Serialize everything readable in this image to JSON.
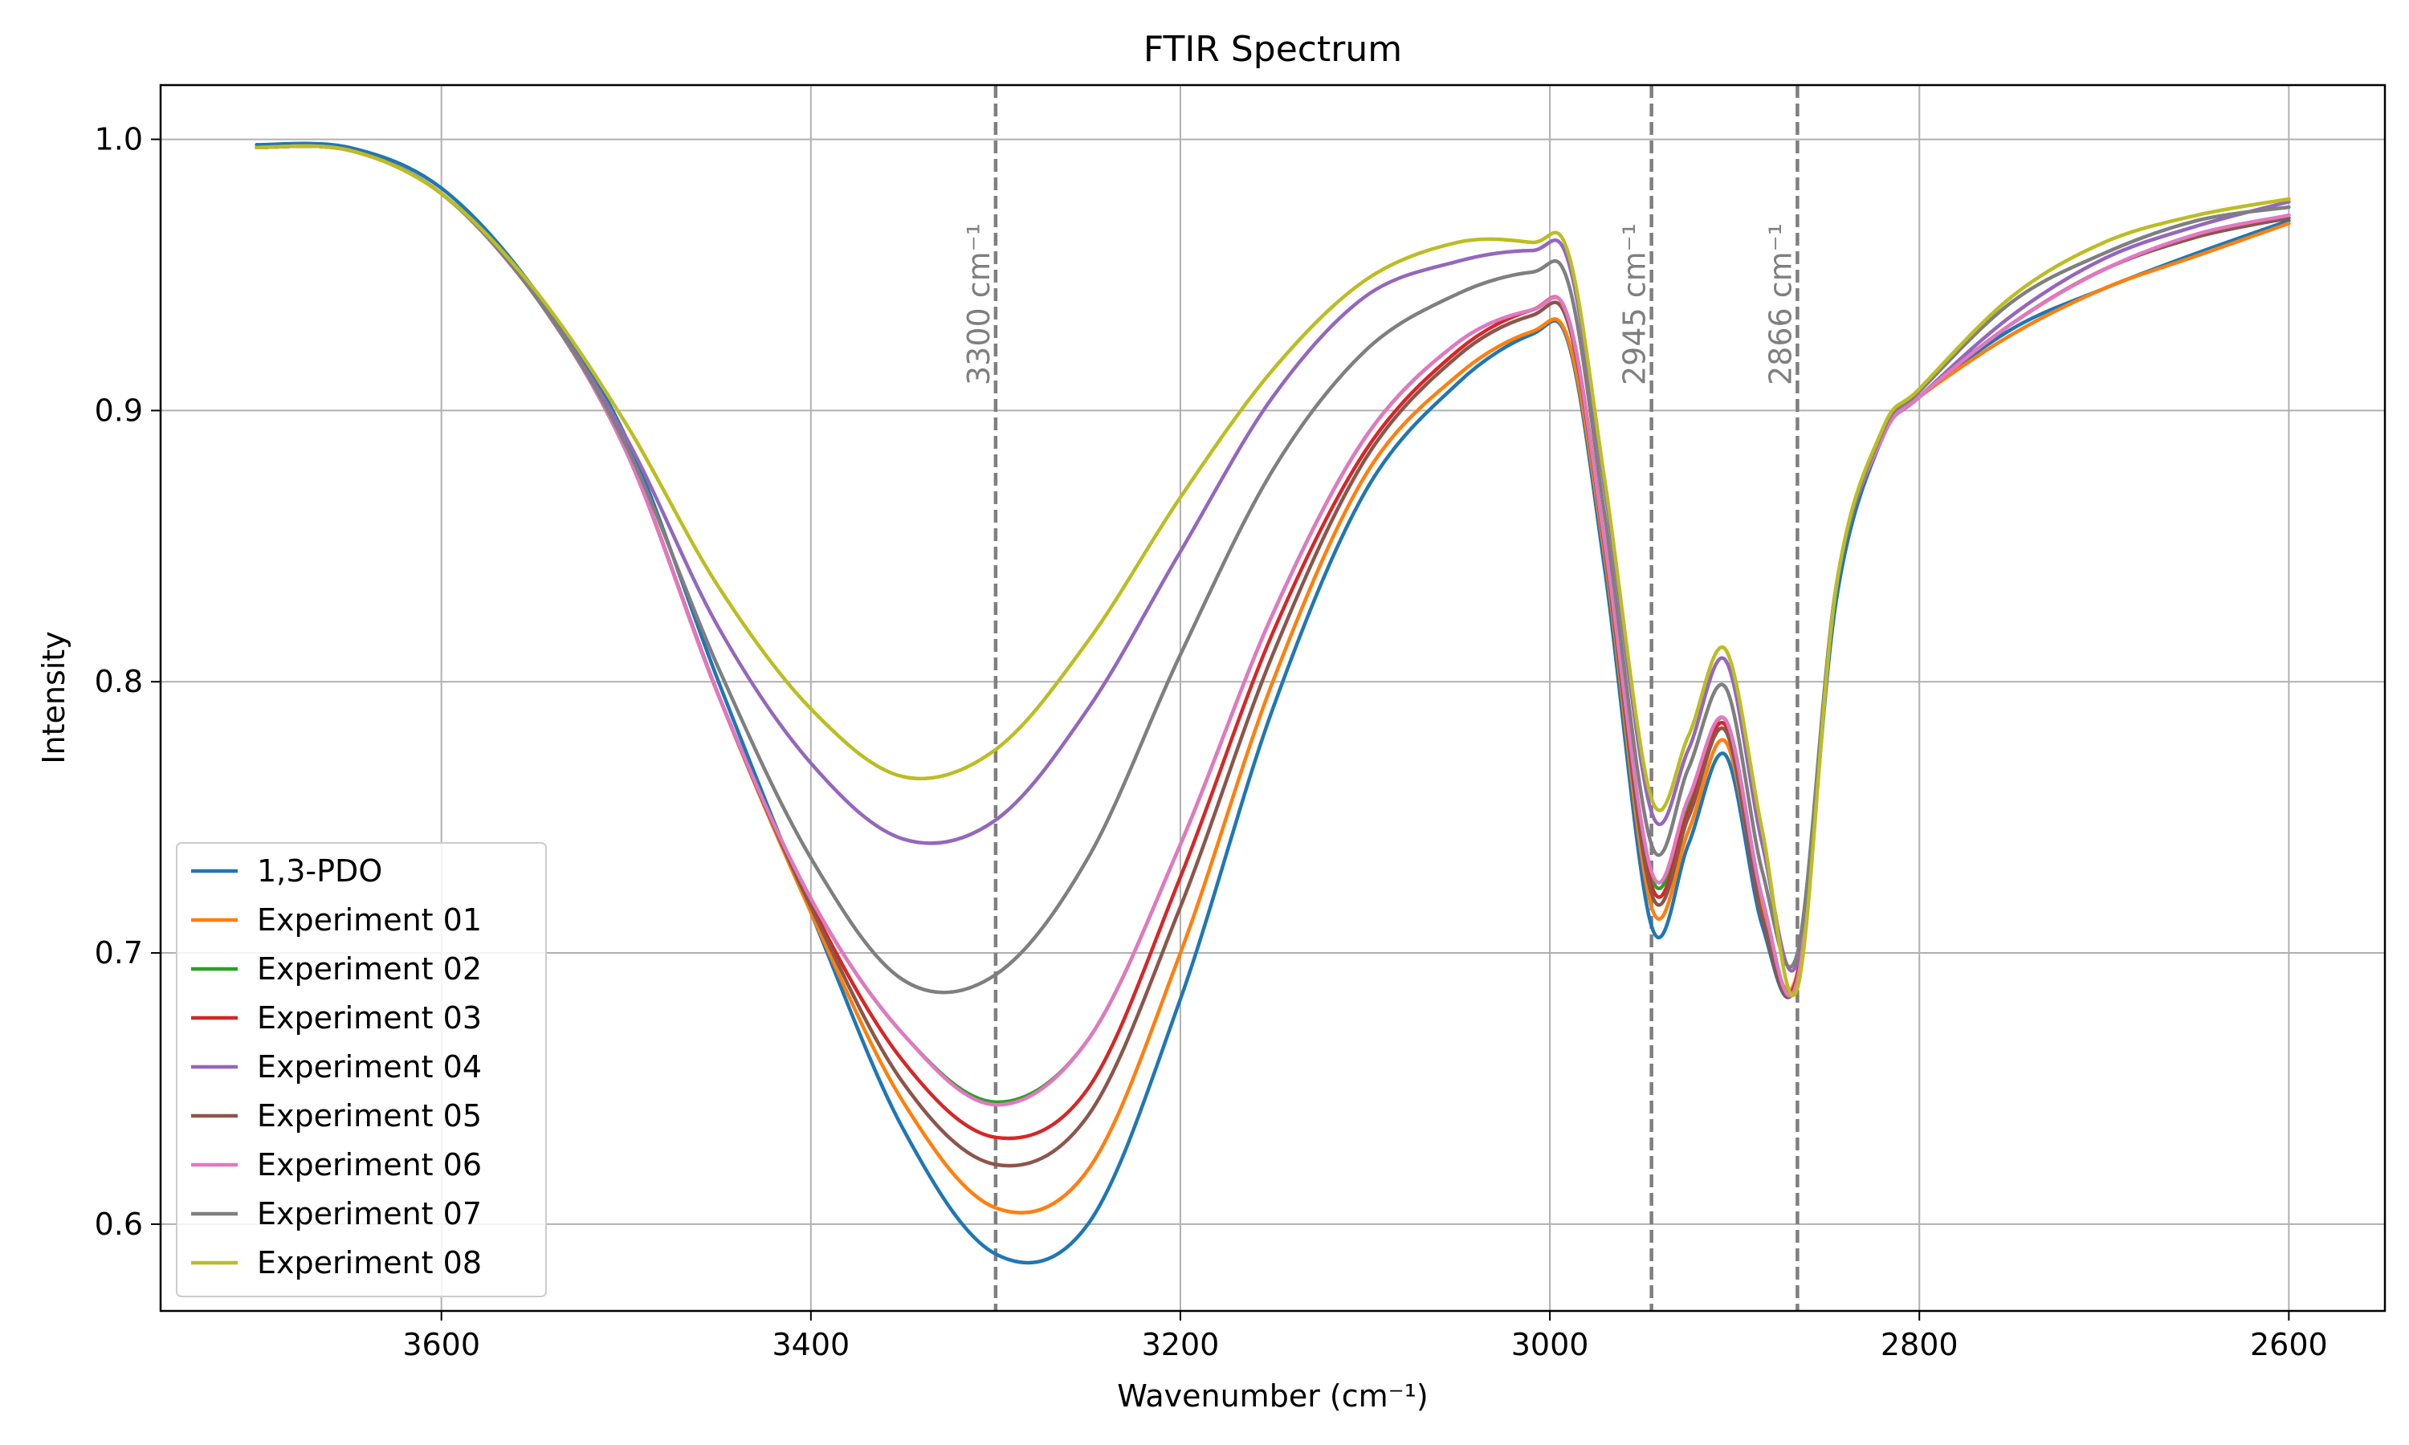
{
  "chart_data": {
    "type": "line",
    "title": "FTIR Spectrum",
    "xlabel": "Wavenumber (cm⁻¹)",
    "ylabel": "Intensity",
    "xlim": [
      3752,
      2548
    ],
    "ylim": [
      0.568,
      1.02
    ],
    "x_ticks": [
      3600,
      3400,
      3200,
      3000,
      2800,
      2600
    ],
    "y_ticks": [
      0.6,
      0.7,
      0.8,
      0.9,
      1.0
    ],
    "x_tick_labels": [
      "3600",
      "3400",
      "3200",
      "3000",
      "2800",
      "2600"
    ],
    "y_tick_labels": [
      "0.6",
      "0.7",
      "0.8",
      "0.9",
      "1.0"
    ],
    "grid": true,
    "legend_position": "lower-left",
    "x_inverted": true,
    "reference_lines": [
      {
        "x": 3300,
        "label": "3300 cm⁻¹"
      },
      {
        "x": 2945,
        "label": "2945 cm⁻¹"
      },
      {
        "x": 2866,
        "label": "2866 cm⁻¹"
      }
    ],
    "x": [
      3700,
      3650,
      3600,
      3550,
      3500,
      3450,
      3400,
      3350,
      3300,
      3250,
      3200,
      3150,
      3100,
      3050,
      3010,
      2990,
      2970,
      2945,
      2925,
      2905,
      2885,
      2866,
      2845,
      2820,
      2800,
      2750,
      2700,
      2650,
      2600
    ],
    "series": [
      {
        "name": "1,3-PDO",
        "color": "#1f77b4",
        "values": [
          0.998,
          0.997,
          0.982,
          0.945,
          0.89,
          0.8,
          0.715,
          0.635,
          0.589,
          0.6,
          0.683,
          0.79,
          0.87,
          0.91,
          0.928,
          0.925,
          0.84,
          0.71,
          0.74,
          0.773,
          0.71,
          0.691,
          0.83,
          0.89,
          0.905,
          0.93,
          0.945,
          0.958,
          0.97
        ]
      },
      {
        "name": "Experiment 01",
        "color": "#ff7f0e",
        "values": [
          0.997,
          0.996,
          0.98,
          0.943,
          0.885,
          0.795,
          0.715,
          0.645,
          0.606,
          0.62,
          0.7,
          0.8,
          0.876,
          0.913,
          0.929,
          0.926,
          0.845,
          0.717,
          0.745,
          0.778,
          0.715,
          0.693,
          0.835,
          0.892,
          0.905,
          0.928,
          0.945,
          0.957,
          0.969
        ]
      },
      {
        "name": "Experiment 02",
        "color": "#2ca02c",
        "values": [
          0.997,
          0.996,
          0.98,
          0.943,
          0.885,
          0.795,
          0.72,
          0.67,
          0.645,
          0.668,
          0.74,
          0.825,
          0.89,
          0.925,
          0.937,
          0.934,
          0.85,
          0.728,
          0.755,
          0.786,
          0.72,
          0.69,
          0.835,
          0.89,
          0.905,
          0.932,
          0.952,
          0.964,
          0.972
        ]
      },
      {
        "name": "Experiment 03",
        "color": "#d62728",
        "values": [
          0.997,
          0.996,
          0.98,
          0.943,
          0.885,
          0.795,
          0.718,
          0.66,
          0.632,
          0.65,
          0.728,
          0.818,
          0.885,
          0.922,
          0.937,
          0.934,
          0.85,
          0.725,
          0.752,
          0.784,
          0.713,
          0.692,
          0.835,
          0.89,
          0.905,
          0.932,
          0.952,
          0.964,
          0.971
        ]
      },
      {
        "name": "Experiment 04",
        "color": "#9467bd",
        "values": [
          0.997,
          0.996,
          0.98,
          0.943,
          0.89,
          0.82,
          0.77,
          0.742,
          0.749,
          0.79,
          0.848,
          0.905,
          0.942,
          0.955,
          0.959,
          0.955,
          0.87,
          0.752,
          0.775,
          0.808,
          0.74,
          0.697,
          0.835,
          0.89,
          0.905,
          0.935,
          0.956,
          0.968,
          0.977
        ]
      },
      {
        "name": "Experiment 05",
        "color": "#8c564b",
        "values": [
          0.997,
          0.996,
          0.98,
          0.943,
          0.885,
          0.795,
          0.717,
          0.652,
          0.622,
          0.64,
          0.717,
          0.81,
          0.882,
          0.92,
          0.935,
          0.932,
          0.848,
          0.722,
          0.75,
          0.782,
          0.713,
          0.691,
          0.835,
          0.89,
          0.905,
          0.932,
          0.952,
          0.964,
          0.971
        ]
      },
      {
        "name": "Experiment 06",
        "color": "#e377c2",
        "values": [
          0.997,
          0.996,
          0.98,
          0.943,
          0.885,
          0.795,
          0.72,
          0.67,
          0.644,
          0.668,
          0.74,
          0.825,
          0.89,
          0.925,
          0.937,
          0.934,
          0.85,
          0.73,
          0.757,
          0.786,
          0.72,
          0.69,
          0.835,
          0.89,
          0.905,
          0.932,
          0.952,
          0.965,
          0.972
        ]
      },
      {
        "name": "Experiment 07",
        "color": "#7f7f7f",
        "values": [
          0.997,
          0.996,
          0.98,
          0.943,
          0.887,
          0.805,
          0.735,
          0.69,
          0.692,
          0.735,
          0.81,
          0.878,
          0.922,
          0.943,
          0.951,
          0.947,
          0.86,
          0.74,
          0.768,
          0.798,
          0.73,
          0.7,
          0.835,
          0.892,
          0.907,
          0.94,
          0.958,
          0.97,
          0.975
        ]
      },
      {
        "name": "Experiment 08",
        "color": "#bcbd22",
        "values": [
          0.997,
          0.996,
          0.98,
          0.945,
          0.895,
          0.835,
          0.79,
          0.765,
          0.775,
          0.815,
          0.868,
          0.915,
          0.948,
          0.962,
          0.962,
          0.958,
          0.873,
          0.757,
          0.78,
          0.812,
          0.745,
          0.687,
          0.835,
          0.893,
          0.908,
          0.942,
          0.962,
          0.972,
          0.978
        ]
      }
    ]
  }
}
